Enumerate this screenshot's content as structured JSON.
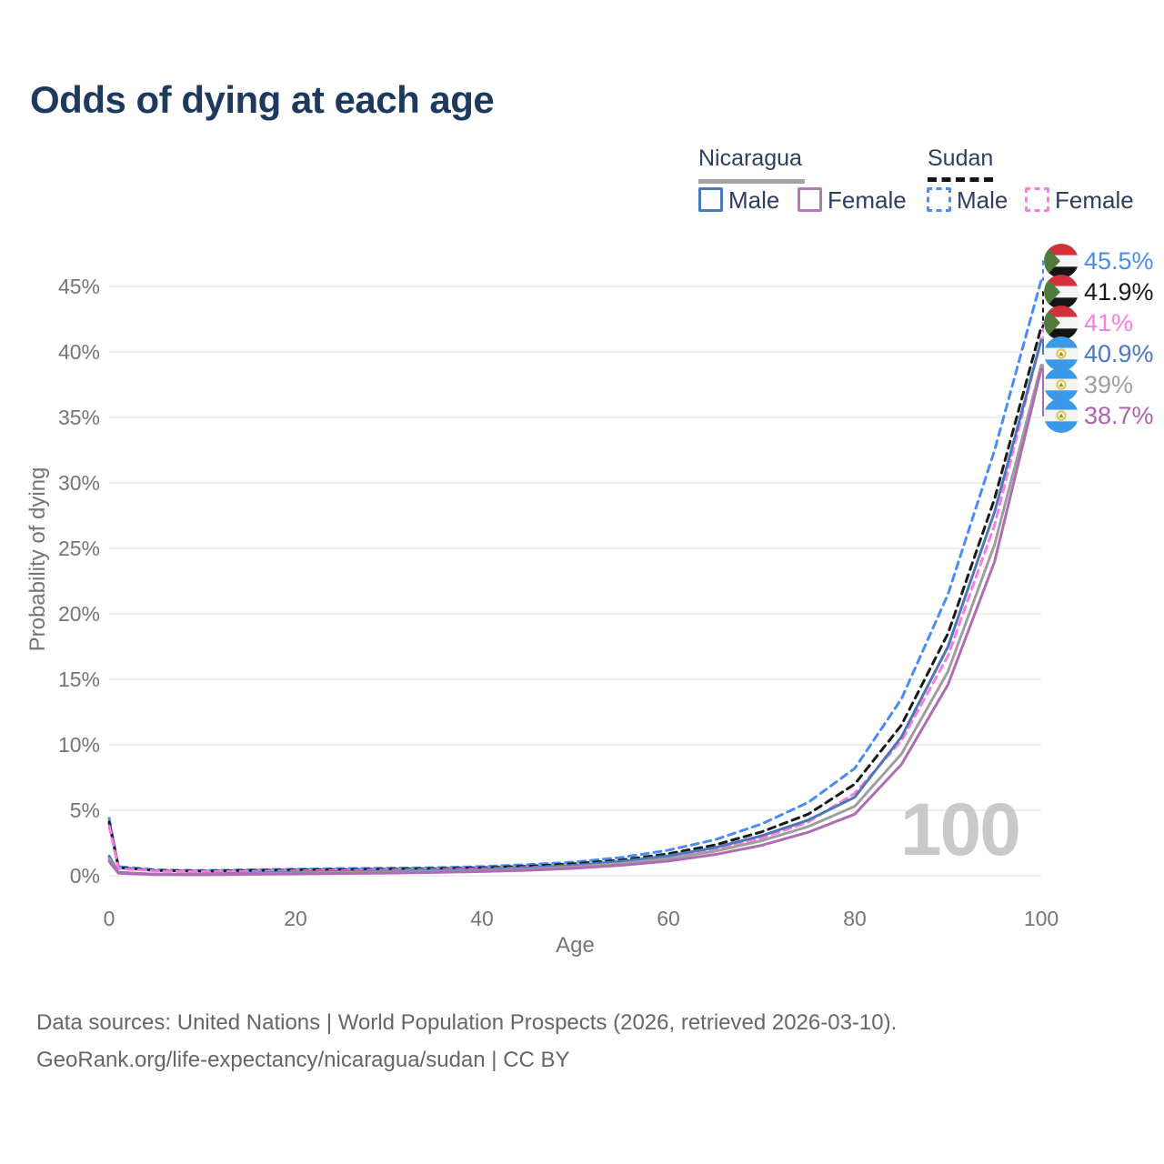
{
  "title": "Odds of dying at each age",
  "legend": {
    "nicaragua": {
      "label": "Nicaragua",
      "male_label": "Male",
      "female_label": "Female"
    },
    "sudan": {
      "label": "Sudan",
      "male_label": "Male",
      "female_label": "Female"
    }
  },
  "colors": {
    "title_text": "#1d3a5e",
    "legend_text": "#2d3e5f",
    "nicaragua_underline": "#a3a3a3",
    "sudan_underline": "#161616",
    "nicaragua_male": "#4b79b7",
    "nicaragua_both": "#9e9e9e",
    "nicaragua_female": "#b06cb3",
    "sudan_male": "#4a8cf7",
    "sudan_both": "#1a1a1a",
    "sudan_female": "#ff7be0",
    "watermark": "#c9c9c9",
    "footer_text": "#666666"
  },
  "footer": {
    "line1": "Data sources: United Nations | World Population Prospects (2026, retrieved 2026-03-10).",
    "line2": "GeoRank.org/life-expectancy/nicaragua/sudan | CC BY"
  },
  "chart_data": {
    "type": "line",
    "title": "Odds of dying at each age",
    "xlabel": "Age",
    "ylabel": "Probability of dying",
    "xlim": [
      0,
      100
    ],
    "ylim": [
      0,
      47
    ],
    "x_ticks": [
      0,
      20,
      40,
      60,
      80,
      100
    ],
    "y_ticks": [
      0,
      5,
      10,
      15,
      20,
      25,
      30,
      35,
      40,
      45
    ],
    "y_tick_suffix": "%",
    "grid": "horizontal",
    "grid_color": "#e9e9e9",
    "axis_text_color": "#757575",
    "age_watermark": "100",
    "legend_position": "top-right",
    "x": [
      0,
      1,
      5,
      10,
      15,
      20,
      25,
      30,
      35,
      40,
      45,
      50,
      55,
      60,
      65,
      70,
      75,
      80,
      85,
      90,
      95,
      100
    ],
    "series": [
      {
        "id": "sudan-male",
        "name": "Sudan Male",
        "country": "Sudan",
        "sex": "Male",
        "style": "dashed",
        "color": "#4a8cf7",
        "end_value": 45.5,
        "end_label": "45.5%",
        "values": [
          4.4,
          0.7,
          0.45,
          0.4,
          0.45,
          0.5,
          0.55,
          0.58,
          0.62,
          0.7,
          0.85,
          1.05,
          1.4,
          1.95,
          2.75,
          3.95,
          5.6,
          8.2,
          13.5,
          21.5,
          32.5,
          45.5
        ]
      },
      {
        "id": "sudan-both",
        "name": "Sudan Both sexes",
        "country": "Sudan",
        "sex": "Both sexes",
        "style": "dashed",
        "color": "#1a1a1a",
        "end_value": 41.9,
        "end_label": "41.9%",
        "values": [
          4.1,
          0.62,
          0.4,
          0.35,
          0.4,
          0.44,
          0.47,
          0.5,
          0.54,
          0.61,
          0.73,
          0.92,
          1.2,
          1.68,
          2.35,
          3.35,
          4.7,
          7.0,
          11.5,
          18.5,
          28.8,
          41.9
        ]
      },
      {
        "id": "sudan-female",
        "name": "Sudan Female",
        "country": "Sudan",
        "sex": "Female",
        "style": "dashed",
        "color": "#ff7be0",
        "end_value": 41.0,
        "end_label": "41%",
        "values": [
          3.8,
          0.55,
          0.36,
          0.31,
          0.34,
          0.37,
          0.4,
          0.43,
          0.47,
          0.53,
          0.63,
          0.8,
          1.03,
          1.42,
          2.0,
          2.87,
          4.1,
          6.3,
          10.3,
          16.8,
          26.8,
          41.0
        ]
      },
      {
        "id": "nicaragua-male",
        "name": "Nicaragua Male",
        "country": "Nicaragua",
        "sex": "Male",
        "style": "solid",
        "color": "#4b79b7",
        "label_color": "#4a77c4",
        "end_value": 40.9,
        "end_label": "40.9%",
        "values": [
          1.5,
          0.25,
          0.12,
          0.12,
          0.2,
          0.28,
          0.32,
          0.35,
          0.4,
          0.47,
          0.6,
          0.8,
          1.1,
          1.52,
          2.15,
          3.05,
          4.25,
          6.0,
          10.6,
          17.5,
          27.8,
          40.9
        ]
      },
      {
        "id": "nicaragua-both",
        "name": "Nicaragua Both sexes",
        "country": "Nicaragua",
        "sex": "Both sexes",
        "style": "solid",
        "color": "#9e9e9e",
        "end_value": 39.0,
        "end_label": "39%",
        "values": [
          1.3,
          0.22,
          0.1,
          0.1,
          0.15,
          0.21,
          0.25,
          0.28,
          0.32,
          0.39,
          0.5,
          0.68,
          0.94,
          1.31,
          1.87,
          2.67,
          3.75,
          5.3,
          9.3,
          15.6,
          25.3,
          39.0
        ]
      },
      {
        "id": "nicaragua-female",
        "name": "Nicaragua Female",
        "country": "Nicaragua",
        "sex": "Female",
        "style": "solid",
        "color": "#b06cb3",
        "label_color": "#b05fae",
        "end_value": 38.7,
        "end_label": "38.7%",
        "values": [
          1.1,
          0.19,
          0.09,
          0.08,
          0.11,
          0.14,
          0.17,
          0.2,
          0.25,
          0.32,
          0.42,
          0.57,
          0.8,
          1.12,
          1.62,
          2.32,
          3.32,
          4.7,
          8.5,
          14.6,
          24.0,
          38.7
        ]
      }
    ]
  }
}
